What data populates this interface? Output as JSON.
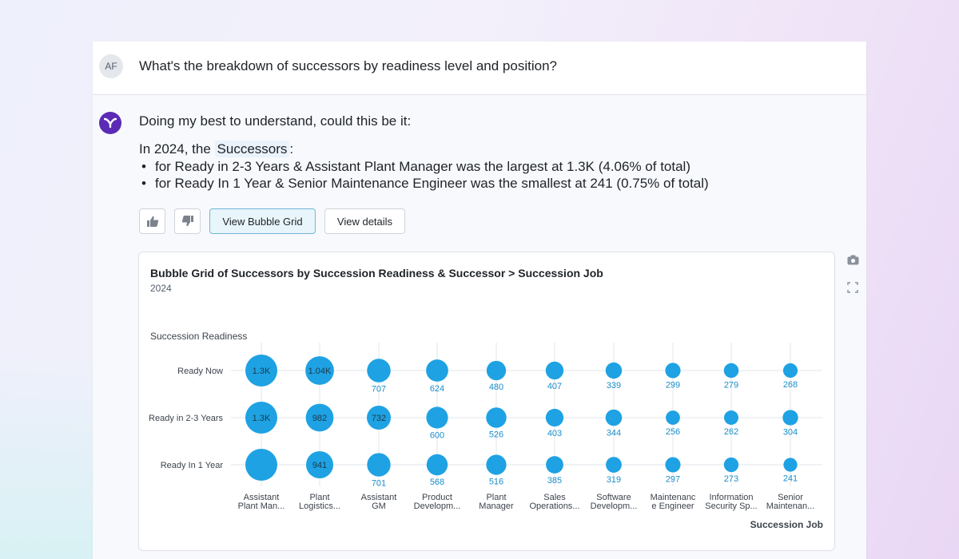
{
  "user": {
    "initials": "AF",
    "question": "What's the breakdown of successors by readiness level and position?"
  },
  "answer": {
    "intro": "Doing my best to understand, could this be it:",
    "lead_prefix": "In 2024, the",
    "lead_term": "Successors",
    "lead_suffix": ":",
    "bullets": [
      "for Ready in 2-3 Years & Assistant Plant Manager was the largest at 1.3K (4.06% of total)",
      "for Ready In 1 Year & Senior Maintenance Engineer was the smallest at 241 (0.75% of total)"
    ]
  },
  "actions": {
    "thumbs_up_icon": "thumbs-up-icon",
    "thumbs_down_icon": "thumbs-down-icon",
    "view_bubble_grid": "View Bubble Grid",
    "view_details": "View details"
  },
  "side_icons": [
    "camera-icon",
    "expand-icon"
  ],
  "colors": {
    "bubble": "#1ea2e3",
    "label": "#1a8fc9",
    "accent": "#5b2bb5"
  },
  "chart_data": {
    "type": "bubble-grid",
    "title": "Bubble Grid of Successors by Succession Readiness & Successor > Succession Job",
    "subtitle": "2024",
    "ylabel": "Succession Readiness",
    "xlabel": "Succession Job",
    "rows": [
      "Ready Now",
      "Ready in 2-3 Years",
      "Ready In 1 Year"
    ],
    "columns": [
      [
        "Assistant",
        "Plant Man..."
      ],
      [
        "Plant",
        "Logistics..."
      ],
      [
        "Assistant",
        "GM"
      ],
      [
        "Product",
        "Developm..."
      ],
      [
        "Plant",
        "Manager"
      ],
      [
        "Sales",
        "Operations..."
      ],
      [
        "Software",
        "Developm..."
      ],
      [
        "Maintenanc",
        "e Engineer"
      ],
      [
        "Information",
        "Security Sp..."
      ],
      [
        "Senior",
        "Maintenan..."
      ]
    ],
    "values": [
      [
        1300,
        1040,
        707,
        624,
        480,
        407,
        339,
        299,
        279,
        268
      ],
      [
        1300,
        982,
        732,
        600,
        526,
        403,
        344,
        256,
        262,
        304
      ],
      [
        1300,
        941,
        701,
        568,
        516,
        385,
        319,
        297,
        273,
        241
      ]
    ],
    "labels": [
      [
        "1.3K",
        "1.04K",
        "707",
        "624",
        "480",
        "407",
        "339",
        "299",
        "279",
        "268"
      ],
      [
        "1.3K",
        "982",
        "732",
        "600",
        "526",
        "403",
        "344",
        "256",
        "262",
        "304"
      ],
      [
        "",
        "941",
        "701",
        "568",
        "516",
        "385",
        "319",
        "297",
        "273",
        "241"
      ]
    ]
  }
}
